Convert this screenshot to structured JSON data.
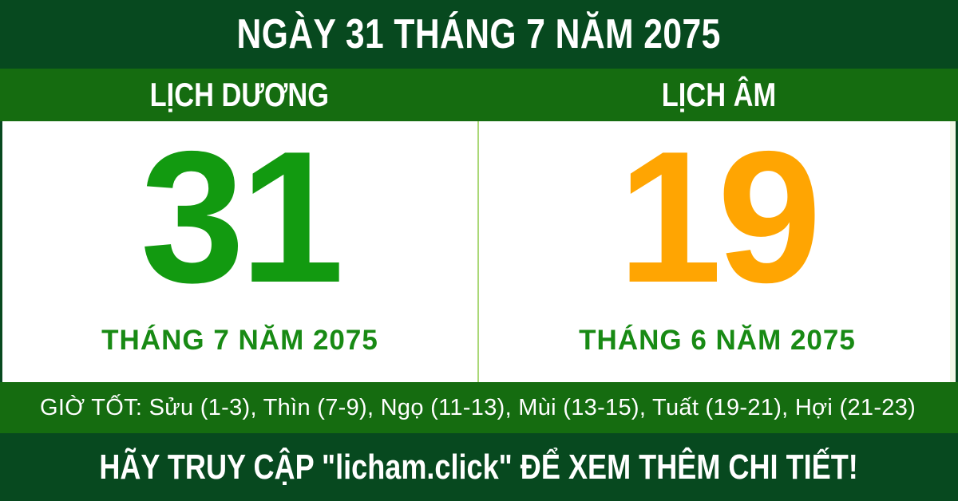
{
  "colors": {
    "dark_green": "#07491f",
    "medium_green": "#156c10",
    "solar_day_green": "#129a10",
    "lunar_day_orange": "#ffa502",
    "month_text_green": "#188a14",
    "divider_light_green": "#abd878",
    "text_white": "#ffffff"
  },
  "header": {
    "title": "NGÀY 31 THÁNG 7 NĂM 2075"
  },
  "calendar": {
    "solar": {
      "label": "LỊCH DƯƠNG",
      "day": "31",
      "month_line": "THÁNG 7 NĂM 2075"
    },
    "lunar": {
      "label": "LỊCH ÂM",
      "day": "19",
      "month_line": "THÁNG 6 NĂM 2075"
    }
  },
  "good_hours": {
    "label": "GIỜ TỐT:",
    "hours": [
      "Sửu (1-3)",
      "Thìn (7-9)",
      "Ngọ (11-13)",
      "Mùi (13-15)",
      "Tuất (19-21)",
      "Hợi (21-23)"
    ],
    "display": "GIỜ TỐT: Sửu (1-3), Thìn (7-9), Ngọ (11-13), Mùi (13-15), Tuất (19-21), Hợi (21-23)"
  },
  "footer": {
    "cta": "HÃY TRUY CẬP \"licham.click\" ĐỂ XEM THÊM CHI TIẾT!"
  }
}
